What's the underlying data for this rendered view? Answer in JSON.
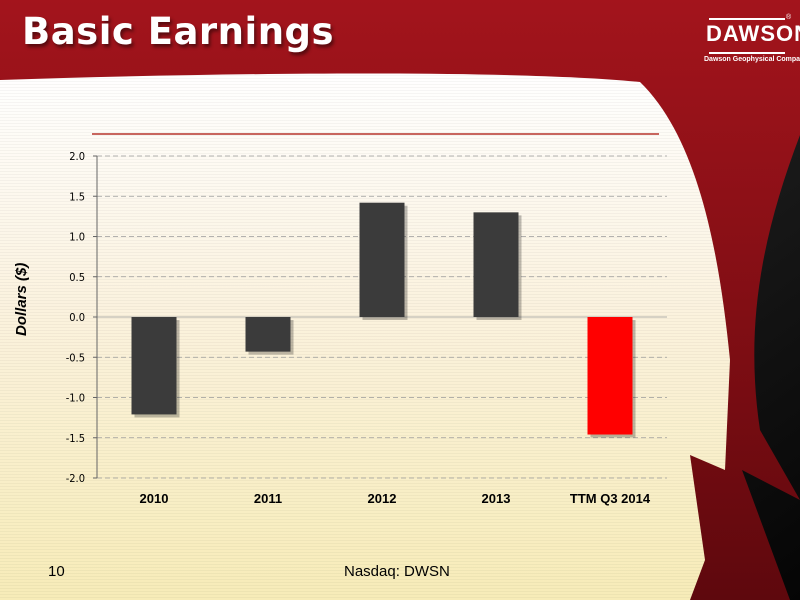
{
  "slide": {
    "title": "Basic Earnings",
    "page_number": "10",
    "footer": "Nasdaq: DWSN",
    "logo": {
      "word": "DAWSON",
      "reg": "®",
      "tagline": "Dawson Geophysical Company"
    }
  },
  "colors": {
    "header_red": "#8e1118",
    "bar_dark": "#3b3b3b",
    "bar_highlight": "#ff0000",
    "rule_line": "#b5342c"
  },
  "chart_data": {
    "type": "bar",
    "title": "",
    "xlabel": "",
    "ylabel": "Dollars ($)",
    "categories": [
      "2010",
      "2011",
      "2012",
      "2013",
      "TTM Q3 2014"
    ],
    "values": [
      -1.21,
      -0.43,
      1.42,
      1.3,
      -1.46
    ],
    "highlight_index": 4,
    "ylim": [
      -2.0,
      2.0
    ],
    "yticks": [
      "2.0",
      "1.5",
      "1.0",
      "0.5",
      "0.0",
      "-0.5",
      "-1.0",
      "-1.5",
      "-2.0"
    ],
    "grid": true
  }
}
